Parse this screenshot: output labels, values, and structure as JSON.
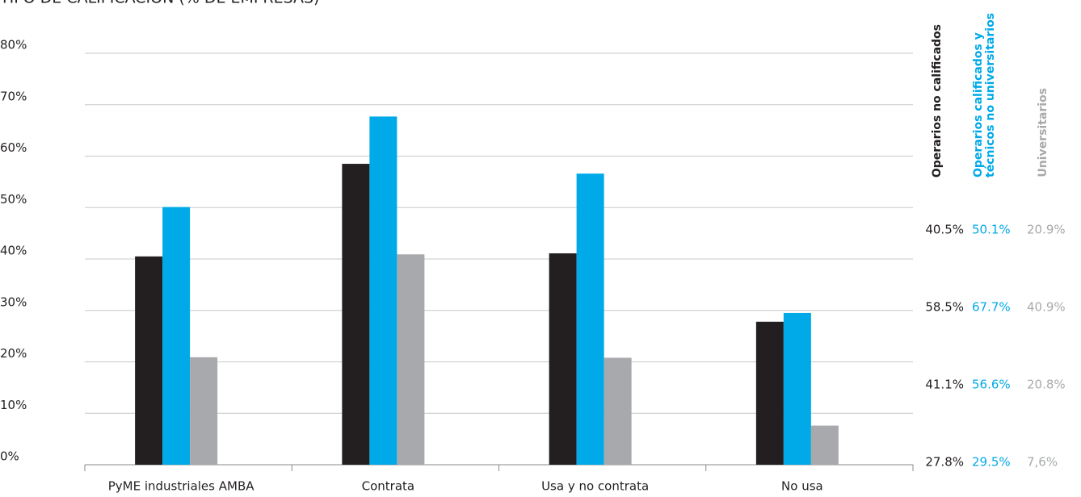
{
  "chart_data": {
    "type": "bar",
    "title": "TIPO DE CALIFICACIÓN (% DE EMPRESAS)",
    "categories": [
      "PyME industriales AMBA",
      "Contrata",
      "Usa y no contrata",
      "No usa"
    ],
    "series": [
      {
        "name": "Operarios no calificados",
        "color": "#231f20",
        "values": [
          40.5,
          58.5,
          41.1,
          27.8
        ],
        "value_labels": [
          "40.5%",
          "58.5%",
          "41.1%",
          "27.8%"
        ]
      },
      {
        "name": "Operarios calificados y técnicos no universitarios",
        "color": "#00a9e8",
        "values": [
          50.1,
          67.7,
          56.6,
          29.5
        ],
        "value_labels": [
          "50.1%",
          "67.7%",
          "56.6%",
          "29.5%"
        ]
      },
      {
        "name": "Universitarios",
        "color": "#a7a9ac",
        "values": [
          20.9,
          40.9,
          20.8,
          7.6
        ],
        "value_labels": [
          "20.9%",
          "40.9%",
          "20.8%",
          "7,6%"
        ]
      }
    ],
    "ylim": [
      0,
      80
    ],
    "yticks": [
      {
        "value": 0,
        "label": "0%"
      },
      {
        "value": 10,
        "label": "10%"
      },
      {
        "value": 20,
        "label": "20%"
      },
      {
        "value": 30,
        "label": "30%"
      },
      {
        "value": 40,
        "label": "40%"
      },
      {
        "value": 50,
        "label": "50%"
      },
      {
        "value": 60,
        "label": "60%"
      },
      {
        "value": 70,
        "label": "70%"
      },
      {
        "value": 80,
        "label": "80%"
      }
    ],
    "grid": true
  }
}
